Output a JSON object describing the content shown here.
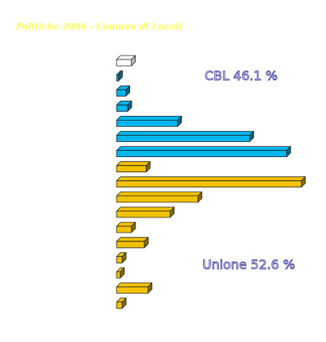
{
  "page": {
    "title": "Politiche 2006 - Comune di Lucoli"
  },
  "chart_data": {
    "type": "bar",
    "orientation": "horizontal",
    "style": "3d",
    "title": "Politiche 2006 - Comune di Lucoli",
    "xlabel": "",
    "ylabel": "",
    "xlim": [
      0,
      100
    ],
    "grid": false,
    "legend": "none",
    "annotations": [
      {
        "text": "CBL 46.1 %",
        "color": "#ffffff",
        "outline": "#4a4aa8",
        "near": "upper bars"
      },
      {
        "text": "Unione 52.6 %",
        "color": "#ffffff",
        "outline": "#4a4aa8",
        "near": "lower bars"
      }
    ],
    "colors": {
      "neutral": "#ffffff",
      "cbl": "#00b4ec",
      "unione": "#f2c200"
    },
    "bars": [
      {
        "group": "neutral",
        "value": 8
      },
      {
        "group": "cbl",
        "value": 1
      },
      {
        "group": "cbl",
        "value": 5
      },
      {
        "group": "cbl",
        "value": 6
      },
      {
        "group": "cbl",
        "value": 33
      },
      {
        "group": "cbl",
        "value": 72
      },
      {
        "group": "cbl",
        "value": 92
      },
      {
        "group": "unione",
        "value": 16
      },
      {
        "group": "unione",
        "value": 100
      },
      {
        "group": "unione",
        "value": 44
      },
      {
        "group": "unione",
        "value": 29
      },
      {
        "group": "unione",
        "value": 8
      },
      {
        "group": "unione",
        "value": 15
      },
      {
        "group": "unione",
        "value": 3
      },
      {
        "group": "unione",
        "value": 2
      },
      {
        "group": "unione",
        "value": 17
      },
      {
        "group": "unione",
        "value": 3
      }
    ]
  }
}
